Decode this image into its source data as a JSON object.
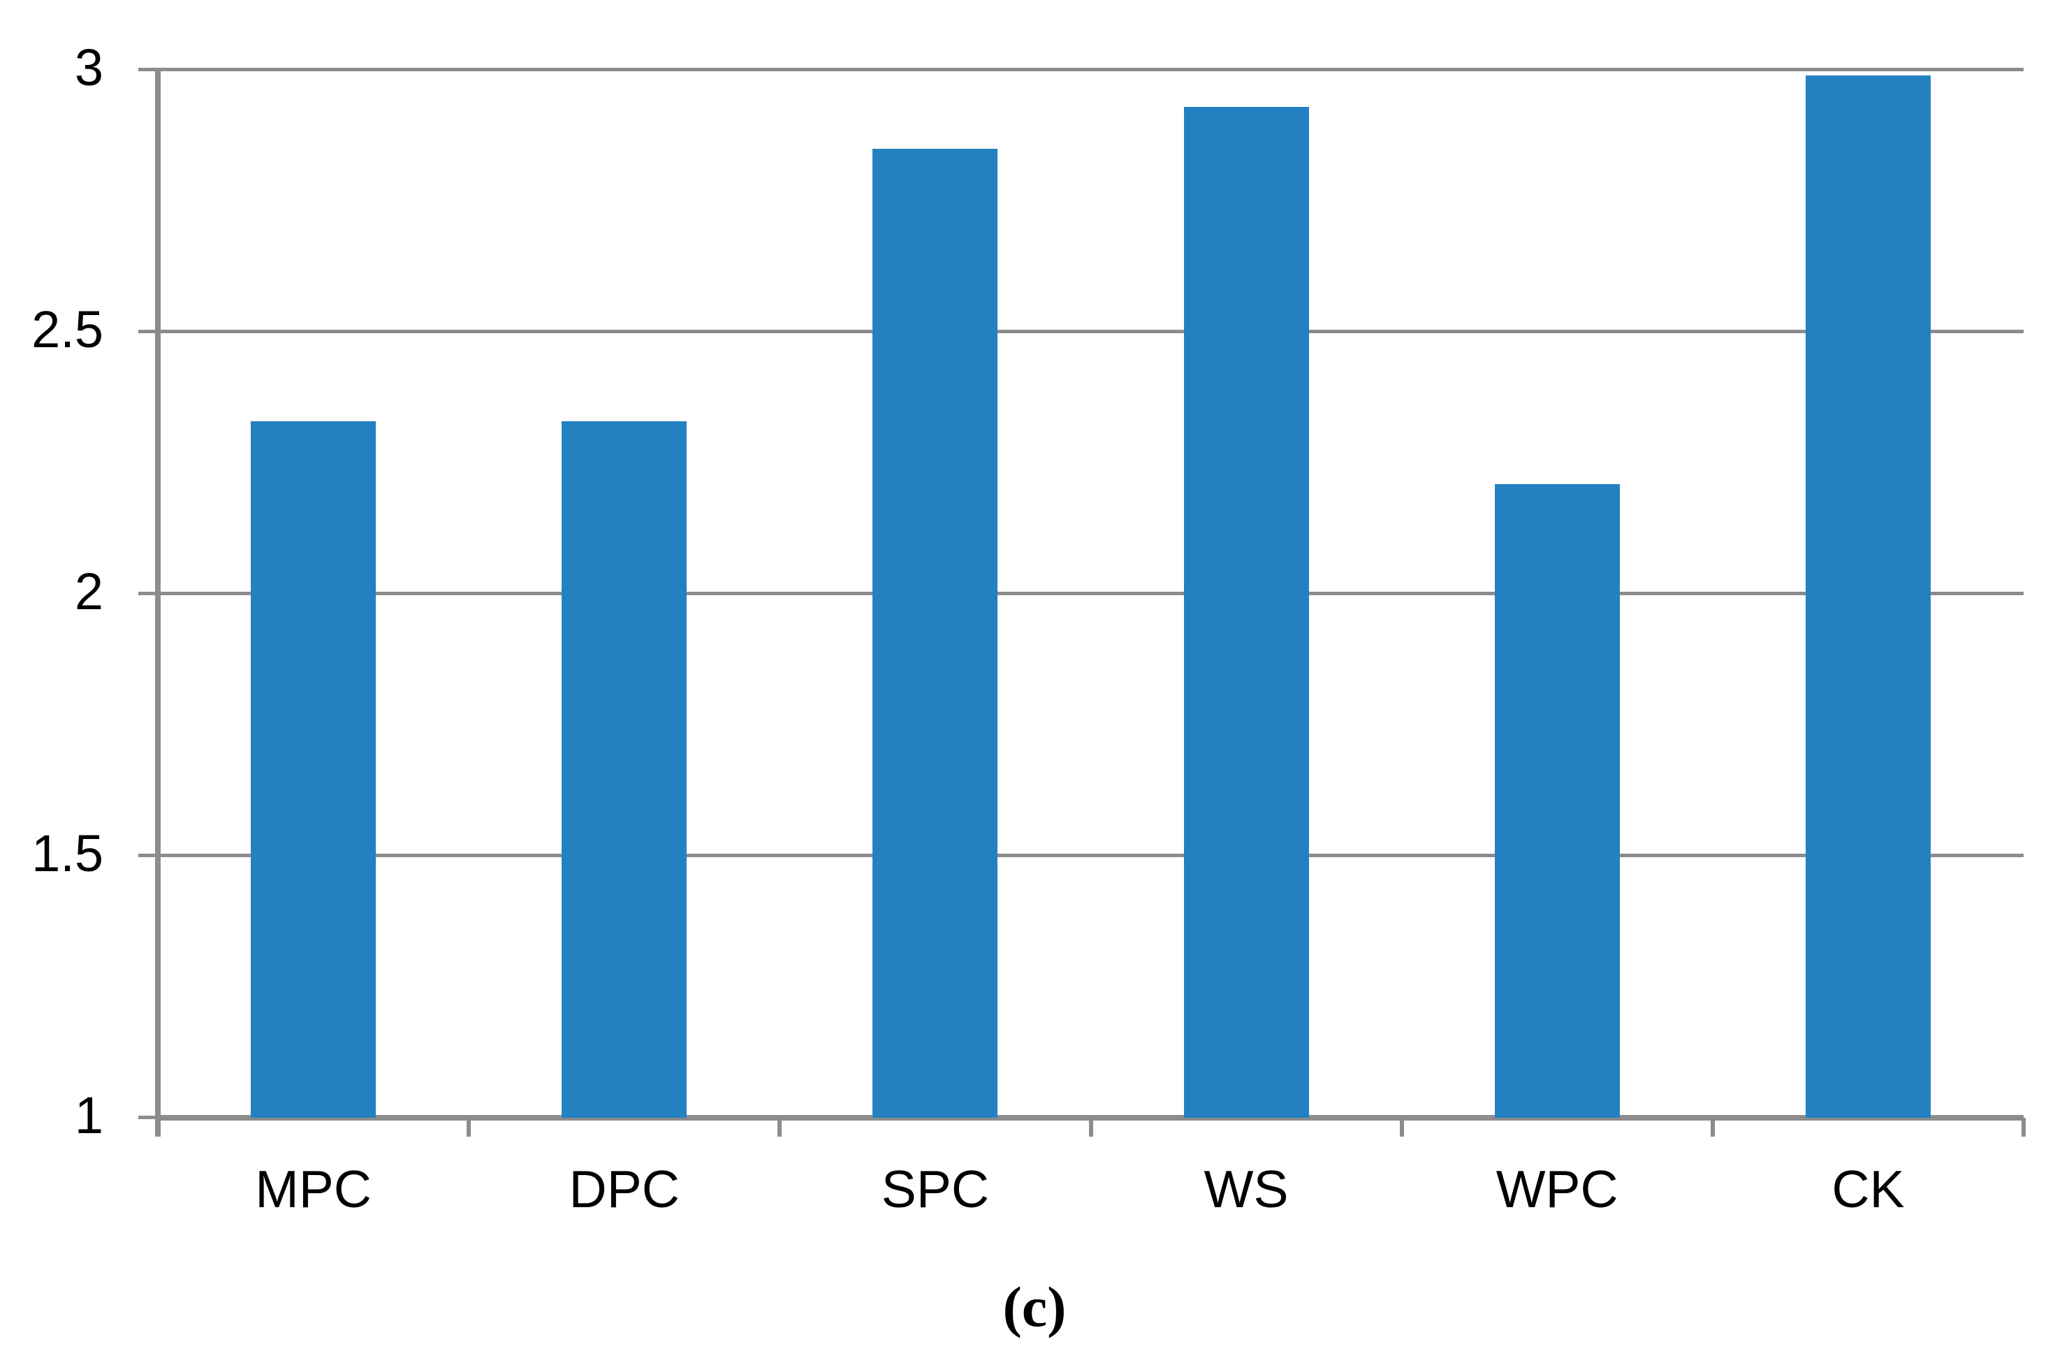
{
  "chart_data": {
    "type": "bar",
    "categories": [
      "MPC",
      "DPC",
      "SPC",
      "WS",
      "WPC",
      "CK"
    ],
    "values": [
      2.33,
      2.33,
      2.85,
      2.93,
      2.21,
      2.99
    ],
    "title": "",
    "xlabel": "",
    "ylabel": "",
    "ylim": [
      1,
      3
    ],
    "yticks": [
      1,
      1.5,
      2,
      2.5,
      3
    ],
    "ytick_labels": [
      "1",
      "1.5",
      "2",
      "2.5",
      "3"
    ],
    "caption": "(c)",
    "grid": true,
    "legend": false,
    "bar_color": "#2481C1",
    "gridline_color": "#8C8C8C",
    "axis_color": "#8C8C8C",
    "text_color": "#000000",
    "background_color": "#FFFFFF"
  }
}
